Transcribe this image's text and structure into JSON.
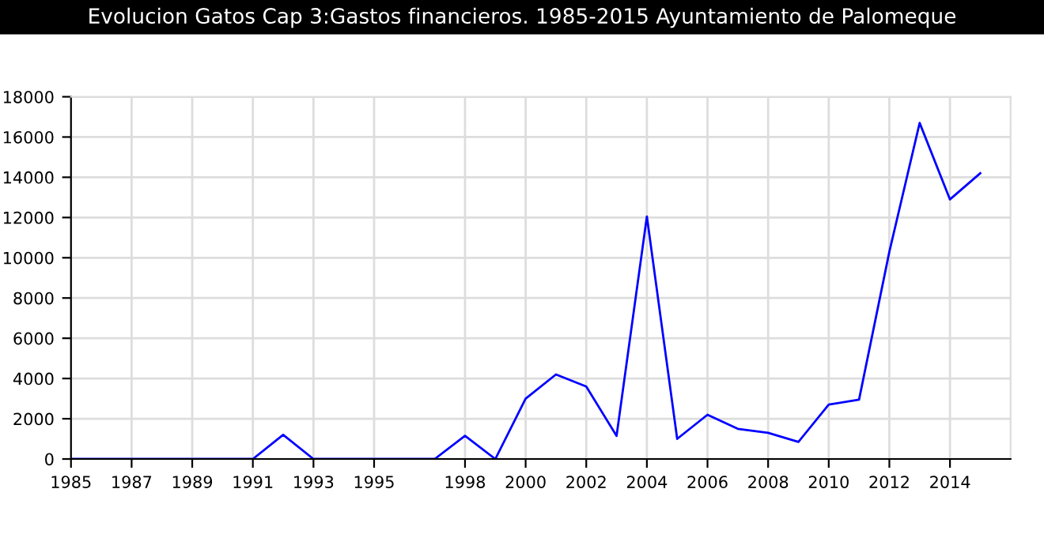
{
  "chart_data": {
    "type": "line",
    "title": "Evolucion Gatos Cap 3:Gastos financieros. 1985-2015 Ayuntamiento de Palomeque",
    "x": [
      1985,
      1986,
      1987,
      1988,
      1989,
      1990,
      1991,
      1992,
      1993,
      1994,
      1995,
      1996,
      1997,
      1998,
      1999,
      2000,
      2001,
      2002,
      2003,
      2004,
      2005,
      2006,
      2007,
      2008,
      2009,
      2010,
      2011,
      2012,
      2013,
      2014,
      2015
    ],
    "series": [
      {
        "color": "#0000ff",
        "values": [
          0,
          0,
          0,
          0,
          0,
          0,
          0,
          1200,
          0,
          0,
          0,
          0,
          0,
          1150,
          0,
          3000,
          4200,
          3600,
          1150,
          12050,
          1000,
          2200,
          1500,
          1300,
          850,
          2700,
          2950,
          10300,
          16700,
          12900,
          14200
        ]
      }
    ],
    "xlim": [
      1985,
      2016
    ],
    "xticks": [
      1985,
      1987,
      1989,
      1991,
      1993,
      1995,
      1998,
      2000,
      2002,
      2004,
      2006,
      2008,
      2010,
      2012,
      2014
    ],
    "ylim": [
      0,
      18000
    ],
    "yticks": [
      0,
      2000,
      4000,
      6000,
      8000,
      10000,
      12000,
      14000,
      16000,
      18000
    ],
    "grid": true,
    "legend": false
  }
}
